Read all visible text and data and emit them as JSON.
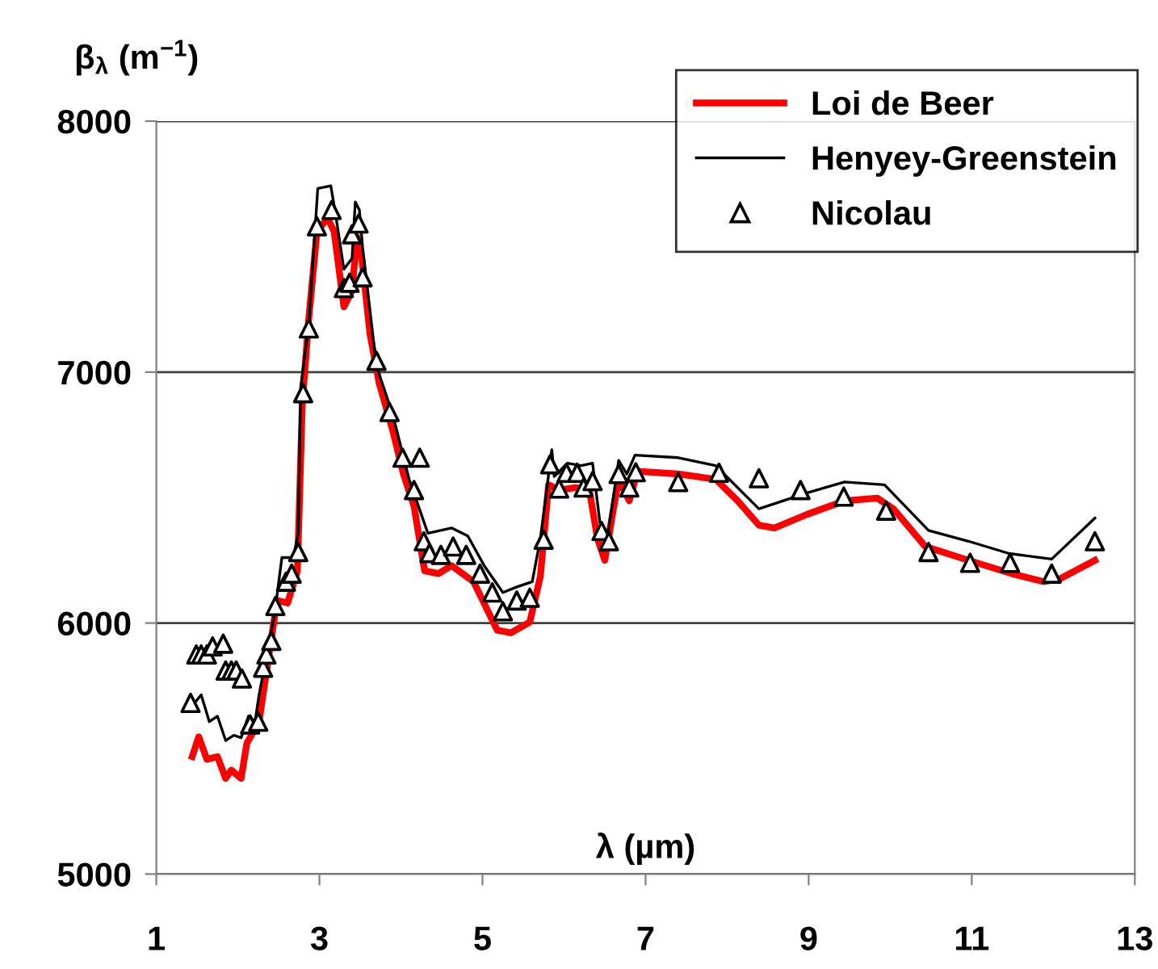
{
  "chart_data": {
    "type": "line",
    "xlabel": "λ (µm)",
    "ylabel": "β$_{λ}$ (m$^{−1}$)",
    "xlim": [
      1,
      13
    ],
    "xticks": [
      1,
      3,
      5,
      7,
      9,
      11,
      13
    ],
    "ylim": [
      5000,
      8000
    ],
    "yticks": [
      5000,
      6000,
      7000,
      8000
    ],
    "grid": "y",
    "legend": "top right",
    "series": [
      {
        "name": "Loi de Beer",
        "color": "#ff0000",
        "marker": "none",
        "x": [
          1.44,
          1.52,
          1.62,
          1.75,
          1.85,
          1.92,
          2.04,
          2.11,
          2.26,
          2.48,
          2.61,
          2.73,
          2.79,
          2.87,
          2.97,
          3.1,
          3.18,
          3.3,
          3.4,
          3.46,
          3.52,
          3.62,
          3.73,
          3.9,
          4.03,
          4.16,
          4.29,
          4.46,
          4.62,
          4.89,
          5.18,
          5.35,
          5.58,
          5.71,
          5.81,
          5.94,
          6.14,
          6.31,
          6.41,
          6.5,
          6.6,
          6.67,
          6.8,
          6.9,
          7.4,
          7.86,
          8.13,
          8.39,
          8.58,
          8.98,
          9.44,
          9.84,
          10.04,
          10.43,
          10.96,
          11.49,
          11.88,
          12.08,
          12.51
        ],
        "values": [
          5468,
          5547,
          5457,
          5468,
          5381,
          5414,
          5381,
          5521,
          5607,
          6090,
          6080,
          6208,
          6873,
          7216,
          7560,
          7614,
          7560,
          7260,
          7324,
          7539,
          7453,
          7152,
          6959,
          6766,
          6594,
          6466,
          6208,
          6197,
          6229,
          6165,
          5972,
          5961,
          6004,
          6186,
          6551,
          6530,
          6540,
          6530,
          6337,
          6250,
          6444,
          6573,
          6487,
          6605,
          6594,
          6573,
          6487,
          6390,
          6379,
          6433,
          6487,
          6498,
          6455,
          6305,
          6250,
          6197,
          6165,
          6176,
          6250
        ]
      },
      {
        "name": "Henyey-Greenstein",
        "color": "#000000",
        "marker": "none",
        "x": [
          1.39,
          1.55,
          1.65,
          1.75,
          1.85,
          1.95,
          2.04,
          2.13,
          2.21,
          2.26,
          2.45,
          2.54,
          2.68,
          2.74,
          2.77,
          2.87,
          2.98,
          3.14,
          3.2,
          3.3,
          3.4,
          3.44,
          3.49,
          3.53,
          3.7,
          3.9,
          4.1,
          4.33,
          4.62,
          4.82,
          5.02,
          5.25,
          5.42,
          5.61,
          5.71,
          5.85,
          5.88,
          6.04,
          6.21,
          6.35,
          6.44,
          6.54,
          6.67,
          6.77,
          6.87,
          7.4,
          7.86,
          8.39,
          8.98,
          9.44,
          9.93,
          10.47,
          10.96,
          11.46,
          11.98,
          12.51
        ],
        "values": [
          5650,
          5714,
          5607,
          5629,
          5532,
          5553,
          5543,
          5629,
          5607,
          5714,
          6036,
          6261,
          6261,
          6358,
          6938,
          7195,
          7732,
          7742,
          7625,
          7410,
          7453,
          7678,
          7646,
          7496,
          7023,
          6830,
          6573,
          6358,
          6379,
          6347,
          6229,
          6122,
          6144,
          6165,
          6337,
          6691,
          6584,
          6637,
          6627,
          6637,
          6401,
          6358,
          6648,
          6594,
          6669,
          6659,
          6627,
          6455,
          6519,
          6562,
          6551,
          6369,
          6326,
          6277,
          6255,
          6418
        ]
      },
      {
        "name": "Nicolau",
        "color": "#000000",
        "type": "scatter",
        "marker": "triangle",
        "x": [
          1.42,
          1.49,
          1.55,
          1.62,
          1.69,
          1.82,
          1.85,
          1.92,
          1.98,
          2.05,
          2.15,
          2.25,
          2.31,
          2.35,
          2.41,
          2.46,
          2.59,
          2.66,
          2.74,
          2.8,
          2.87,
          2.97,
          3.15,
          3.3,
          3.37,
          3.4,
          3.48,
          3.53,
          3.7,
          3.86,
          4.02,
          4.16,
          4.23,
          4.28,
          4.35,
          4.49,
          4.64,
          4.8,
          4.97,
          5.12,
          5.25,
          5.42,
          5.58,
          5.75,
          5.83,
          5.94,
          6.03,
          6.16,
          6.24,
          6.35,
          6.46,
          6.55,
          6.67,
          6.8,
          6.88,
          7.4,
          7.9,
          8.39,
          8.9,
          9.43,
          9.95,
          10.47,
          10.98,
          11.47,
          11.98,
          12.51
        ],
        "values": [
          5682,
          5875,
          5875,
          5875,
          5907,
          5918,
          5811,
          5811,
          5811,
          5779,
          5596,
          5607,
          5822,
          5875,
          5929,
          6068,
          6165,
          6197,
          6283,
          6916,
          7174,
          7581,
          7646,
          7335,
          7356,
          7549,
          7592,
          7378,
          7045,
          6841,
          6659,
          6530,
          6659,
          6326,
          6279,
          6272,
          6305,
          6272,
          6197,
          6122,
          6047,
          6090,
          6101,
          6332,
          6633,
          6536,
          6599,
          6599,
          6540,
          6566,
          6367,
          6326,
          6594,
          6540,
          6601,
          6562,
          6599,
          6577,
          6530,
          6504,
          6448,
          6283,
          6240,
          6240,
          6197,
          6326
        ]
      }
    ]
  }
}
